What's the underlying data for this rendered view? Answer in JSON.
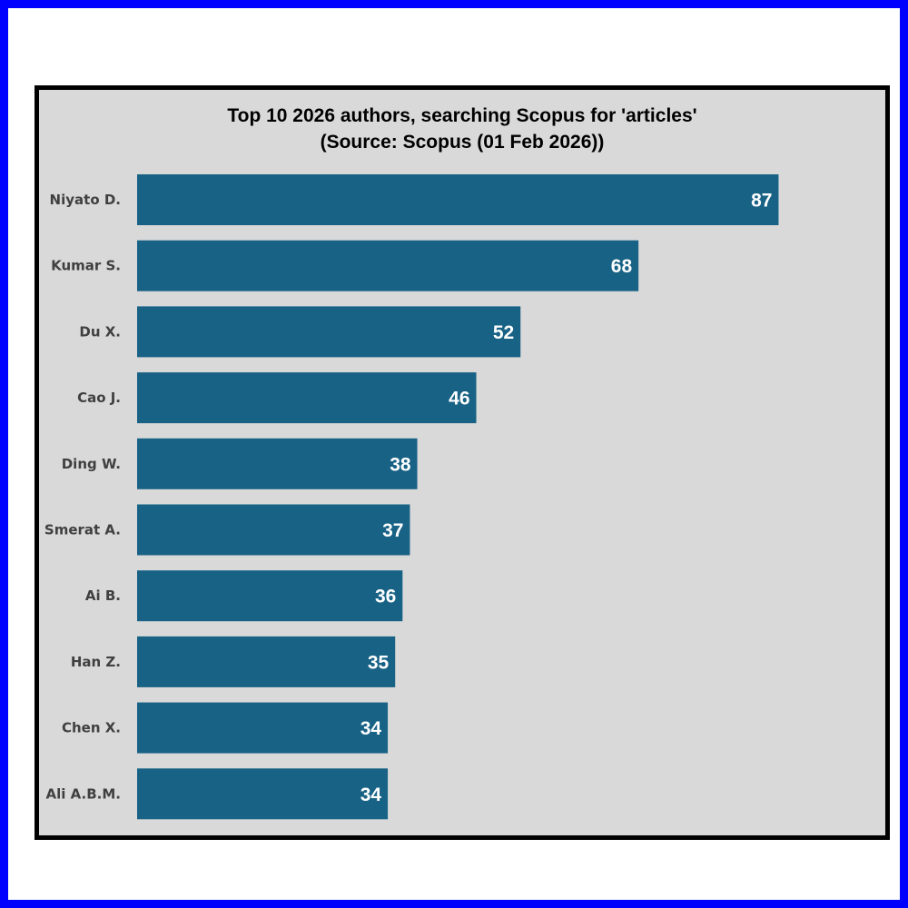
{
  "colors": {
    "frame": "#0000ff",
    "panel": "#d9d9d9",
    "bar": "#186285",
    "value_label": "#ffffff",
    "category_label": "#404040"
  },
  "chart_data": {
    "type": "bar",
    "orientation": "horizontal",
    "title": "Top 10 2026 authors, searching Scopus for 'articles'",
    "subtitle": "(Source: Scopus (01 Feb 2026))",
    "categories": [
      "Niyato D.",
      "Kumar S.",
      "Du X.",
      "Cao J.",
      "Ding W.",
      "Smerat A.",
      "Ai B.",
      "Han Z.",
      "Chen X.",
      "Ali A.B.M."
    ],
    "values": [
      87,
      68,
      52,
      46,
      38,
      37,
      36,
      35,
      34,
      34
    ],
    "xlim": [
      0,
      100
    ],
    "grid": false,
    "legend": "none",
    "data_labels": "inside-end"
  }
}
